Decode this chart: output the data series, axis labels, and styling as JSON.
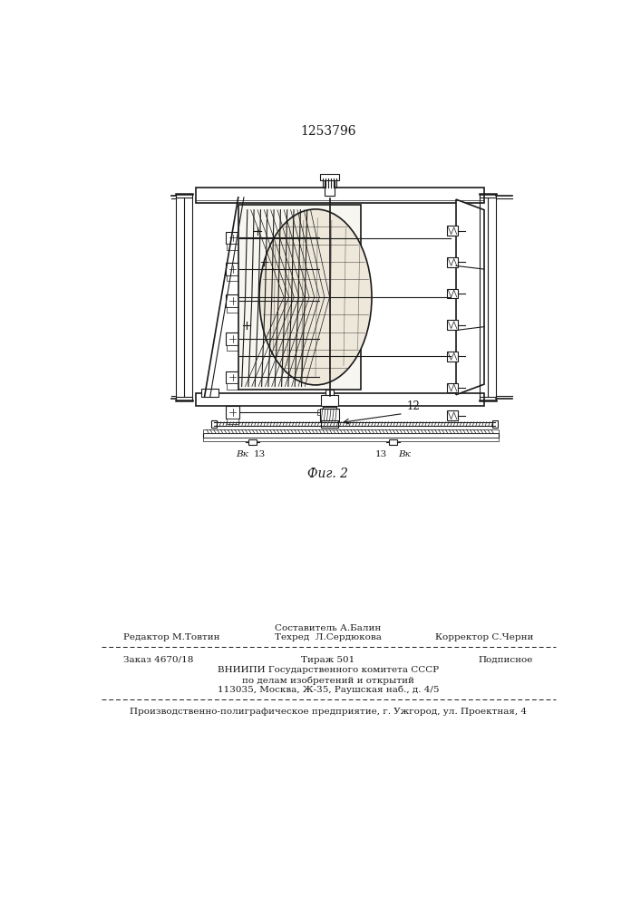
{
  "patent_number": "1253796",
  "fig_label": "Фиг. 2",
  "label_12": "12",
  "label_13a": "13",
  "label_13b": "13",
  "label_Bk_left": "Вк",
  "label_Bk_right": "Вк",
  "footer_sostavitel": "Составитель А.Балин",
  "footer_redaktor": "Редактор М.Товтин",
  "footer_tehred": "Техред  Л.Сердюкова",
  "footer_korrektor": "Корректор С.Черни",
  "footer_order": "Заказ 4670/18",
  "footer_tirazh": "Тираж 501",
  "footer_podpisnoe": "Подписное",
  "footer_vniiipi": "ВНИИПИ Государственного комитета СССР",
  "footer_po_delam": "по делам изобретений и открытий",
  "footer_address": "113035, Москва, Ж-35, Раушская наб., д. 4/5",
  "footer_proizv": "Производственно-полиграфическое предприятие, г. Ужгород, ул. Проектная, 4",
  "bg_color": "#ffffff",
  "line_color": "#1a1a1a"
}
